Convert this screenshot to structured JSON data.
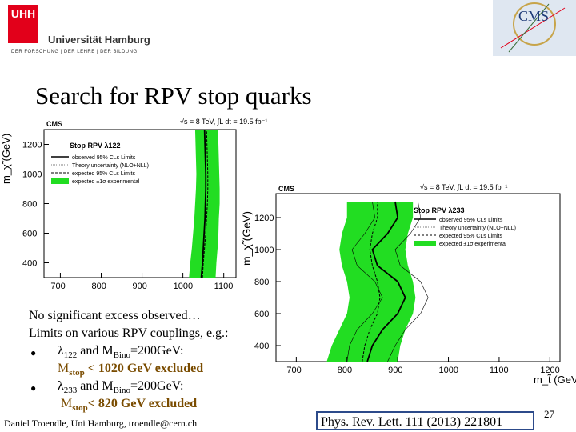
{
  "header": {
    "logo_mark": "UHH",
    "university_name": "Universität Hamburg",
    "university_tagline": "DER FORSCHUNG | DER LEHRE | DER BILDUNG",
    "experiment_logo": "CMS"
  },
  "slide": {
    "title": "Search for RPV stop quarks",
    "page_number": "27",
    "footer": "Daniel Troendle, Uni Hamburg, troendle@cern.ch",
    "reference": "Phys. Rev. Lett. 111 (2013) 221801"
  },
  "text": {
    "line1": "No significant excess observed…",
    "line2": "Limits on various RPV couplings, e.g.:",
    "b1_coupling": "λ",
    "b1_coupling_sub": "122",
    "b1_and": " and M",
    "b1_mass_sub": "Bino",
    "b1_mass_val": "=200GeV:",
    "b1_res_pre": "M",
    "b1_res_sub": "stop",
    "b1_res_val": " < 1020 GeV excluded",
    "b2_coupling": "λ",
    "b2_coupling_sub": "233",
    "b2_and": " and M",
    "b2_mass_sub": "Bino",
    "b2_mass_val": "=200GeV:",
    "b2_res_pre": "M",
    "b2_res_sub": "stop",
    "b2_res_val": "< 820 GeV excluded"
  },
  "chart_data": [
    {
      "type": "line",
      "label": "CMS",
      "lumi": "√s = 8 TeV, ∫L dt = 19.5 fb⁻¹",
      "ylabel": "m_χ̃ (GeV)",
      "legend_title": "Stop RPV λ122",
      "legend": [
        "observed 95% CLs Limits",
        "Theory uncertainty (NLO+NLL)",
        "expected 95% CLs Limits",
        "expected ±1σ experimental"
      ],
      "x_ticks": [
        700,
        800,
        900,
        1000,
        1100
      ],
      "y_ticks": [
        400,
        600,
        800,
        1000,
        1200
      ],
      "xlim": [
        660,
        1130
      ],
      "ylim": [
        300,
        1300
      ],
      "y": [
        300,
        400,
        500,
        600,
        700,
        800,
        900,
        1000,
        1100,
        1200,
        1300
      ],
      "observed_x": [
        1045,
        1048,
        1050,
        1052,
        1054,
        1055,
        1056,
        1056,
        1055,
        1054,
        1053
      ],
      "band_lo": [
        1015,
        1018,
        1022,
        1025,
        1028,
        1030,
        1032,
        1033,
        1032,
        1031,
        1030
      ],
      "band_hi": [
        1080,
        1082,
        1085,
        1087,
        1088,
        1090,
        1090,
        1089,
        1088,
        1087,
        1086
      ],
      "expected_x": [
        1048,
        1050,
        1053,
        1056,
        1058,
        1060,
        1061,
        1061,
        1060,
        1059,
        1058
      ]
    },
    {
      "type": "line",
      "label": "CMS",
      "lumi": "√s = 8 TeV, ∫L dt = 19.5 fb⁻¹",
      "ylabel": "m_χ̃ (GeV)",
      "xlabel": "m_t̃ (GeV)",
      "legend_title": "Stop RPV λ233",
      "legend": [
        "observed 95% CLs Limits",
        "Theory uncertainty (NLO+NLL)",
        "expected 95% CLs Limits",
        "expected ±1σ experimental"
      ],
      "x_ticks": [
        700,
        800,
        900,
        1000,
        1100,
        1200
      ],
      "y_ticks": [
        400,
        600,
        800,
        1000,
        1200
      ],
      "xlim": [
        660,
        1220
      ],
      "ylim": [
        300,
        1350
      ],
      "y": [
        300,
        400,
        500,
        600,
        700,
        800,
        900,
        1000,
        1100,
        1200,
        1300
      ],
      "observed_x": [
        840,
        850,
        870,
        900,
        915,
        900,
        860,
        850,
        880,
        900,
        895
      ],
      "band_lo": [
        760,
        770,
        785,
        800,
        805,
        800,
        790,
        785,
        790,
        800,
        800
      ],
      "band_hi": [
        900,
        905,
        915,
        930,
        935,
        930,
        920,
        915,
        920,
        930,
        930
      ],
      "expected_x": [
        830,
        835,
        845,
        860,
        865,
        860,
        850,
        845,
        850,
        860,
        860
      ],
      "theory_lo_x": [
        800,
        805,
        820,
        850,
        870,
        855,
        820,
        810,
        835,
        855,
        850
      ],
      "theory_hi_x": [
        880,
        895,
        915,
        945,
        960,
        945,
        905,
        895,
        925,
        945,
        940
      ]
    }
  ]
}
